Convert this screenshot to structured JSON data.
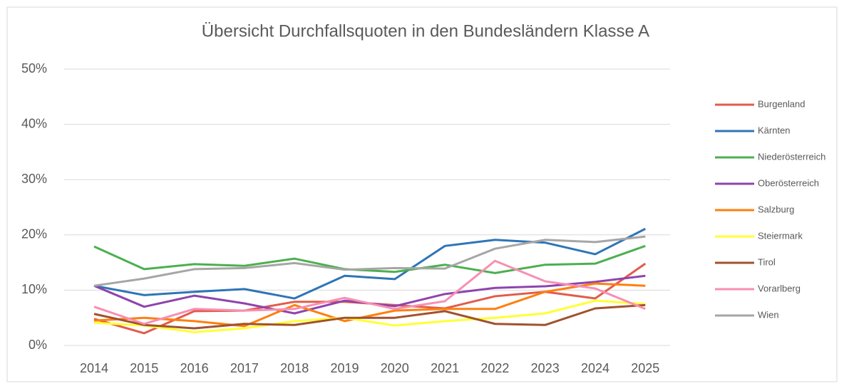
{
  "chart_data": {
    "type": "line",
    "title": "Übersicht Durchfallsquoten in den Bundesländern Klasse A",
    "categories": [
      "2014",
      "2015",
      "2016",
      "2017",
      "2018",
      "2019",
      "2020",
      "2021",
      "2022",
      "2023",
      "2024",
      "2025"
    ],
    "ylim": [
      0,
      50
    ],
    "yticks": [
      {
        "value": 0,
        "label": "0%"
      },
      {
        "value": 10,
        "label": "10%"
      },
      {
        "value": 20,
        "label": "20%"
      },
      {
        "value": 30,
        "label": "30%"
      },
      {
        "value": 40,
        "label": "40%"
      },
      {
        "value": 50,
        "label": "50%"
      }
    ],
    "grid": true,
    "legend": "right",
    "series": [
      {
        "name": "Burgenland",
        "color": "#e15c4a",
        "values": [
          4.8,
          2.2,
          6.2,
          6.3,
          7.9,
          7.9,
          7.3,
          6.7,
          8.9,
          9.7,
          8.5,
          14.8
        ]
      },
      {
        "name": "Kärnten",
        "color": "#2e75b6",
        "values": [
          10.8,
          9.1,
          9.7,
          10.2,
          8.5,
          12.6,
          12.0,
          18.0,
          19.1,
          18.6,
          16.5,
          21.1
        ]
      },
      {
        "name": "Niederösterreich",
        "color": "#4caf50",
        "values": [
          17.9,
          13.8,
          14.7,
          14.4,
          15.7,
          13.8,
          13.3,
          14.6,
          13.1,
          14.6,
          14.8,
          18.0
        ]
      },
      {
        "name": "Oberösterreich",
        "color": "#8e44ad",
        "values": [
          10.8,
          7.0,
          9.0,
          7.6,
          5.8,
          8.1,
          7.1,
          9.3,
          10.4,
          10.7,
          11.5,
          12.6
        ]
      },
      {
        "name": "Salzburg",
        "color": "#ff7f0e",
        "values": [
          4.5,
          5.0,
          4.4,
          3.5,
          7.3,
          4.4,
          6.3,
          6.6,
          6.6,
          9.7,
          11.2,
          10.8
        ]
      },
      {
        "name": "Steiermark",
        "color": "#ffff33",
        "values": [
          4.1,
          3.6,
          2.4,
          3.1,
          4.4,
          5.0,
          3.6,
          4.4,
          5.0,
          5.8,
          8.1,
          7.5
        ]
      },
      {
        "name": "Tirol",
        "color": "#a0522d",
        "values": [
          5.7,
          3.7,
          3.1,
          3.9,
          3.7,
          5.0,
          5.0,
          6.2,
          3.9,
          3.7,
          6.7,
          7.3
        ]
      },
      {
        "name": "Vorarlberg",
        "color": "#f78fb3",
        "values": [
          7.0,
          3.9,
          6.6,
          6.3,
          6.6,
          8.6,
          6.6,
          8.0,
          15.3,
          11.6,
          10.3,
          6.6
        ]
      },
      {
        "name": "Wien",
        "color": "#a6a6a6",
        "values": [
          10.8,
          12.1,
          13.8,
          14.0,
          14.9,
          13.7,
          14.0,
          13.9,
          17.5,
          19.1,
          18.7,
          19.7
        ]
      }
    ]
  }
}
